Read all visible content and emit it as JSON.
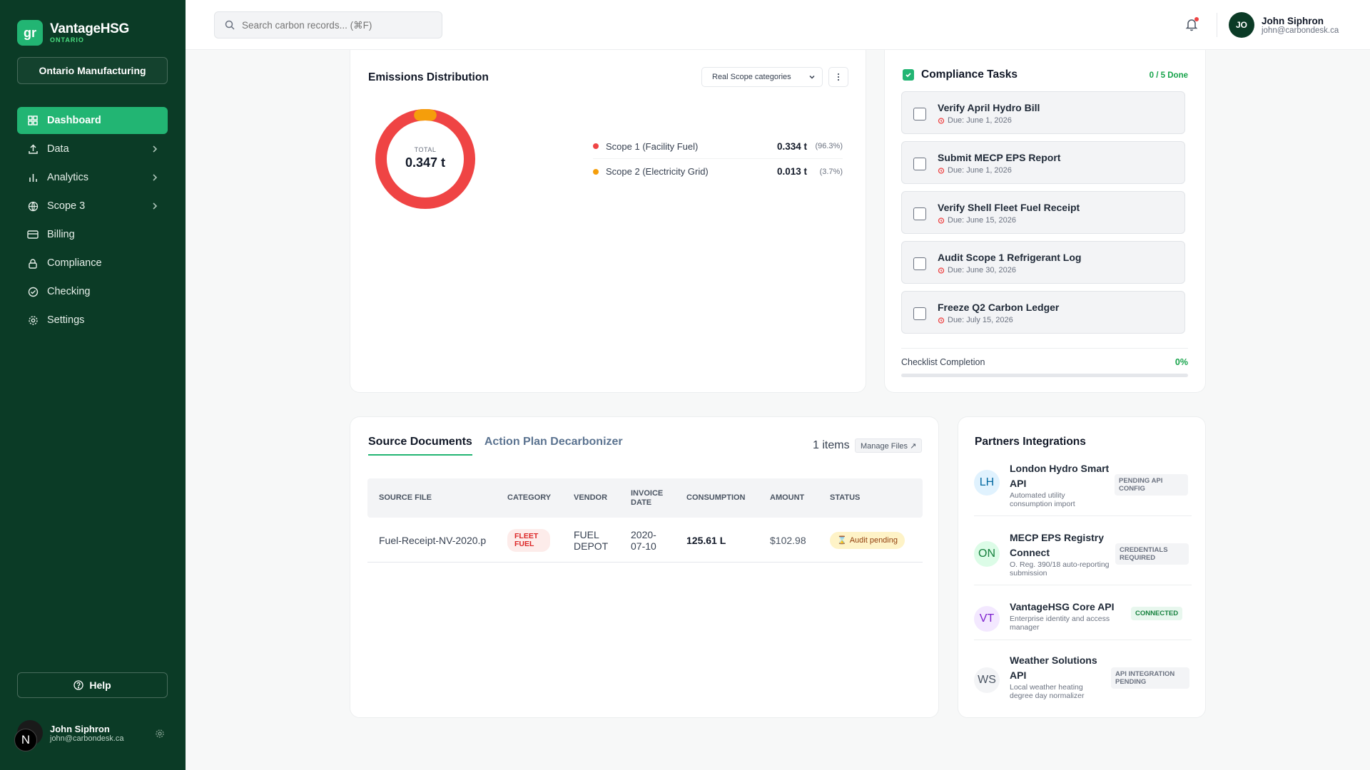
{
  "app": {
    "logo_mark": "gr",
    "name": "VantageHSG",
    "region": "ONTARIO"
  },
  "sidebar": {
    "org": "Ontario Manufacturing",
    "items": [
      {
        "label": "Dashboard",
        "icon": "dashboard-icon",
        "active": true
      },
      {
        "label": "Data",
        "icon": "upload-icon",
        "chevron": true
      },
      {
        "label": "Analytics",
        "icon": "bar-chart-icon",
        "chevron": true
      },
      {
        "label": "Scope 3",
        "icon": "globe-icon",
        "chevron": true
      },
      {
        "label": "Billing",
        "icon": "card-icon"
      },
      {
        "label": "Compliance",
        "icon": "lock-icon"
      },
      {
        "label": "Checking",
        "icon": "check-circle-icon"
      },
      {
        "label": "Settings",
        "icon": "gear-icon"
      }
    ],
    "help": "Help",
    "user": {
      "name": "John Siphron",
      "email": "john@carbondesk.ca",
      "avatar": "N"
    }
  },
  "topbar": {
    "search_placeholder": "Search carbon records... (⌘F)",
    "user": {
      "initials": "JO",
      "name": "John Siphron",
      "email": "john@carbondesk.ca"
    }
  },
  "emissions": {
    "title": "Emissions Distribution",
    "filter": "Real Scope categories",
    "total_label": "TOTAL",
    "total_value": "0.347 t",
    "colors": {
      "scope1": "#ef4444",
      "scope2": "#f59e0b"
    },
    "legend": [
      {
        "label": "Scope 1 (Facility Fuel)",
        "value": "0.334 t",
        "pct": "(96.3%)"
      },
      {
        "label": "Scope 2 (Electricity Grid)",
        "value": "0.013 t",
        "pct": "(3.7%)"
      }
    ]
  },
  "compliance": {
    "title": "Compliance Tasks",
    "count": "0 / 5 Done",
    "tasks": [
      {
        "title": "Verify April Hydro Bill",
        "due": "Due: June 1, 2026"
      },
      {
        "title": "Submit MECP EPS Report",
        "due": "Due: June 1, 2026"
      },
      {
        "title": "Verify Shell Fleet Fuel Receipt",
        "due": "Due: June 15, 2026"
      },
      {
        "title": "Audit Scope 1 Refrigerant Log",
        "due": "Due: June 30, 2026"
      },
      {
        "title": "Freeze Q2 Carbon Ledger",
        "due": "Due: July 15, 2026"
      }
    ],
    "completion_label": "Checklist Completion",
    "completion_pct": "0%",
    "completion_fraction": 0
  },
  "documents": {
    "tabs": [
      "Source Documents",
      "Action Plan Decarbonizer"
    ],
    "items_count": "1 items",
    "manage_label": "Manage Files ↗",
    "columns": [
      "SOURCE FILE",
      "CATEGORY",
      "VENDOR",
      "INVOICE DATE",
      "CONSUMPTION",
      "AMOUNT",
      "STATUS"
    ],
    "rows": [
      {
        "file": "Fuel-Receipt-NV-2020.p",
        "category": "FLEET FUEL",
        "vendor": "FUEL DEPOT",
        "date": "2020-07-10",
        "consumption": "125.61 L",
        "amount": "$102.98",
        "status": "Audit pending"
      }
    ]
  },
  "partners": {
    "title": "Partners Integrations",
    "items": [
      {
        "initials": "LH",
        "name": "London Hydro Smart API",
        "desc": "Automated utility consumption import",
        "badge": "PENDING API CONFIG",
        "status": "pending"
      },
      {
        "initials": "ON",
        "name": "MECP EPS Registry Connect",
        "desc": "O. Reg. 390/18 auto-reporting submission",
        "badge": "CREDENTIALS REQUIRED",
        "status": "pending"
      },
      {
        "initials": "VT",
        "name": "VantageHSG Core API",
        "desc": "Enterprise identity and access manager",
        "badge": "CONNECTED",
        "status": "connected"
      },
      {
        "initials": "WS",
        "name": "Weather Solutions API",
        "desc": "Local weather heating degree day normalizer",
        "badge": "API INTEGRATION PENDING",
        "status": "pending"
      }
    ]
  }
}
